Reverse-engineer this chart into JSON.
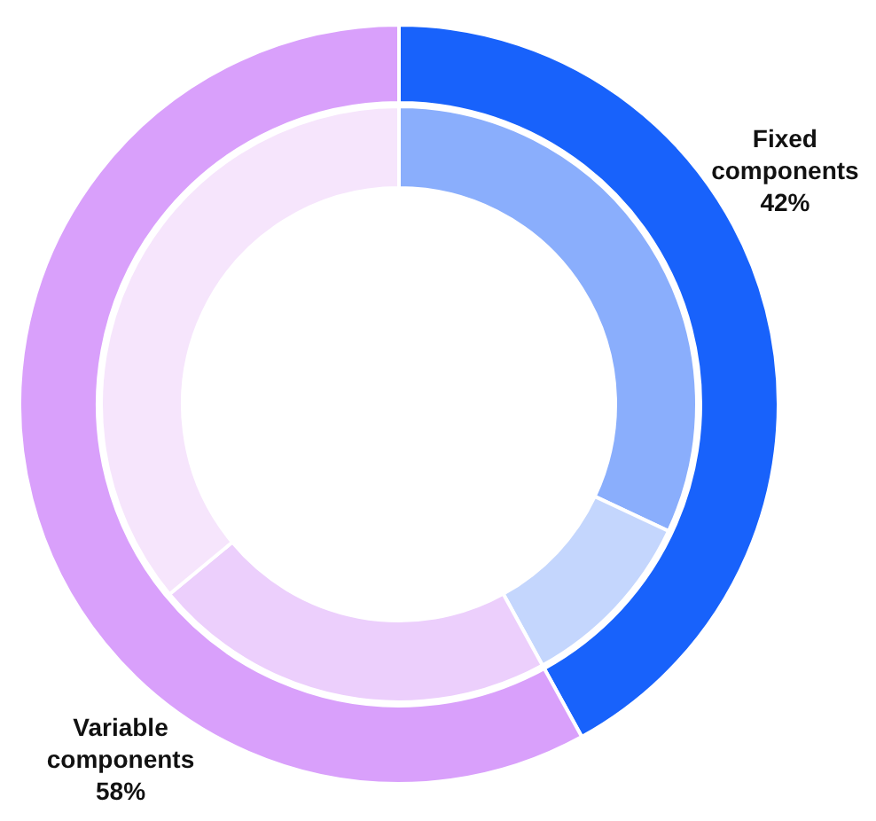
{
  "chart_data": [
    {
      "type": "donut",
      "categories": [
        "Fixed components",
        "Variable components"
      ],
      "values": [
        42,
        58
      ],
      "colors": [
        "#1862fb",
        "#d9a0fb"
      ],
      "value_labels": [
        "42%",
        "58%"
      ]
    },
    {
      "type": "donut",
      "categories": [
        null,
        null,
        null,
        null
      ],
      "values": [
        32,
        10,
        22,
        36
      ],
      "colors": [
        "#8aaefc",
        "#c4d6fd",
        "#eccffc",
        "#f6e5fc"
      ]
    }
  ]
}
